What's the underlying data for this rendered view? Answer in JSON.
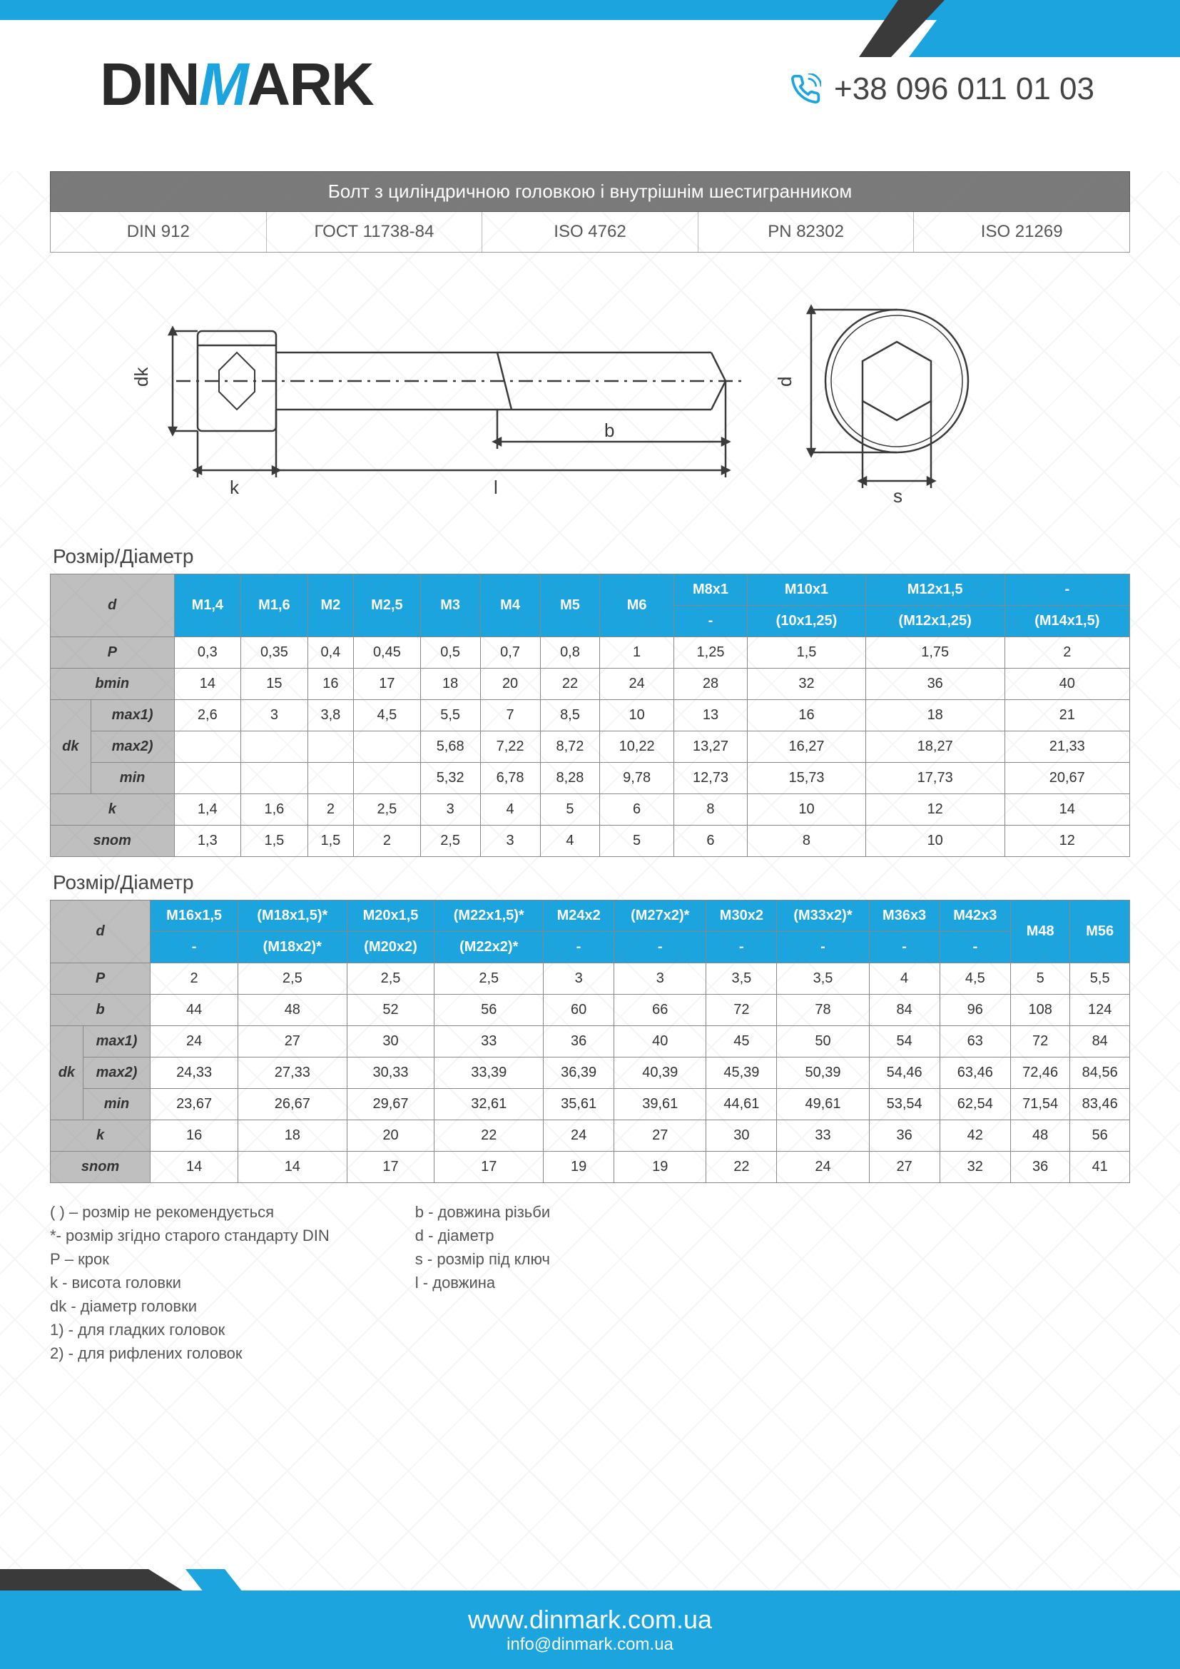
{
  "brand": {
    "name_pre": "DIN",
    "name_m": "M",
    "name_post": "ARK"
  },
  "phone": "+38 096 011 01 03",
  "title": "Болт з циліндричною головкою і внутрішнім шестигранником",
  "standards": [
    "DIN 912",
    "ГОСТ 11738-84",
    "ISO 4762",
    "PN 82302",
    "ISO 21269"
  ],
  "section_title": "Розмір/Діаметр",
  "diagram": {
    "labels": {
      "dk": "dk",
      "k": "k",
      "l": "l",
      "b": "b",
      "d": "d",
      "s": "s"
    },
    "colors": {
      "line": "#3a3a3a",
      "dim": "#3a3a3a"
    }
  },
  "table1": {
    "head_row1": [
      "M1,4",
      "M1,6",
      "M2",
      "M2,5",
      "M3",
      "M4",
      "M5",
      "M6",
      "M8x1",
      "M10x1",
      "M12x1,5",
      "-"
    ],
    "head_row2": [
      "",
      "",
      "",
      "",
      "",
      "",
      "",
      "",
      "-",
      "(10x1,25)",
      "(M12x1,25)",
      "(M14x1,5)"
    ],
    "rows": [
      {
        "label": "P",
        "sub": "",
        "vals": [
          "0,3",
          "0,35",
          "0,4",
          "0,45",
          "0,5",
          "0,7",
          "0,8",
          "1",
          "1,25",
          "1,5",
          "1,75",
          "2"
        ]
      },
      {
        "label": "bmin",
        "sub": "",
        "vals": [
          "14",
          "15",
          "16",
          "17",
          "18",
          "20",
          "22",
          "24",
          "28",
          "32",
          "36",
          "40"
        ]
      },
      {
        "label": "dk",
        "sub": "max1)",
        "vals": [
          "2,6",
          "3",
          "3,8",
          "4,5",
          "5,5",
          "7",
          "8,5",
          "10",
          "13",
          "16",
          "18",
          "21"
        ]
      },
      {
        "label": "",
        "sub": "max2)",
        "vals": [
          "",
          "",
          "",
          "",
          "5,68",
          "7,22",
          "8,72",
          "10,22",
          "13,27",
          "16,27",
          "18,27",
          "21,33"
        ]
      },
      {
        "label": "",
        "sub": "min",
        "vals": [
          "",
          "",
          "",
          "",
          "5,32",
          "6,78",
          "8,28",
          "9,78",
          "12,73",
          "15,73",
          "17,73",
          "20,67"
        ]
      },
      {
        "label": "k",
        "sub": "",
        "vals": [
          "1,4",
          "1,6",
          "2",
          "2,5",
          "3",
          "4",
          "5",
          "6",
          "8",
          "10",
          "12",
          "14"
        ]
      },
      {
        "label": "snom",
        "sub": "",
        "vals": [
          "1,3",
          "1,5",
          "1,5",
          "2",
          "2,5",
          "3",
          "4",
          "5",
          "6",
          "8",
          "10",
          "12"
        ]
      }
    ]
  },
  "table2": {
    "head_row1": [
      "M16x1,5",
      "(M18x1,5)*",
      "M20x1,5",
      "(M22x1,5)*",
      "M24x2",
      "(M27x2)*",
      "M30x2",
      "(M33x2)*",
      "M36x3",
      "M42x3",
      "M48",
      "M56"
    ],
    "head_row2": [
      "-",
      "(M18x2)*",
      "(M20x2)",
      "(M22x2)*",
      "-",
      "-",
      "-",
      "-",
      "-",
      "-",
      "",
      ""
    ],
    "rows": [
      {
        "label": "P",
        "sub": "",
        "vals": [
          "2",
          "2,5",
          "2,5",
          "2,5",
          "3",
          "3",
          "3,5",
          "3,5",
          "4",
          "4,5",
          "5",
          "5,5"
        ]
      },
      {
        "label": "b",
        "sub": "",
        "vals": [
          "44",
          "48",
          "52",
          "56",
          "60",
          "66",
          "72",
          "78",
          "84",
          "96",
          "108",
          "124"
        ]
      },
      {
        "label": "dk",
        "sub": "max1)",
        "vals": [
          "24",
          "27",
          "30",
          "33",
          "36",
          "40",
          "45",
          "50",
          "54",
          "63",
          "72",
          "84"
        ]
      },
      {
        "label": "",
        "sub": "max2)",
        "vals": [
          "24,33",
          "27,33",
          "30,33",
          "33,39",
          "36,39",
          "40,39",
          "45,39",
          "50,39",
          "54,46",
          "63,46",
          "72,46",
          "84,56"
        ]
      },
      {
        "label": "",
        "sub": "min",
        "vals": [
          "23,67",
          "26,67",
          "29,67",
          "32,61",
          "35,61",
          "39,61",
          "44,61",
          "49,61",
          "53,54",
          "62,54",
          "71,54",
          "83,46"
        ]
      },
      {
        "label": "k",
        "sub": "",
        "vals": [
          "16",
          "18",
          "20",
          "22",
          "24",
          "27",
          "30",
          "33",
          "36",
          "42",
          "48",
          "56"
        ]
      },
      {
        "label": "snom",
        "sub": "",
        "vals": [
          "14",
          "14",
          "17",
          "17",
          "19",
          "19",
          "22",
          "24",
          "27",
          "32",
          "36",
          "41"
        ]
      }
    ]
  },
  "legend": {
    "col1": [
      "( ) – розмір не рекомендується",
      "*- розмір згідно старого стандарту  DIN",
      "Р – крок",
      "k - висота головки",
      "dk - діаметр головки",
      "1) - для гладких головок",
      "2) - для рифлених головок"
    ],
    "col2": [
      "b - довжина різьби",
      "d - діаметр",
      "s - розмір під ключ",
      "l - довжина"
    ]
  },
  "footer": {
    "url": "www.dinmark.com.ua",
    "email": "info@dinmark.com.ua"
  },
  "colors": {
    "blue": "#1ba4de",
    "gray_header": "#7a7a7a",
    "gray_cell": "#bfbfbf",
    "border": "#888888",
    "text": "#333333"
  }
}
